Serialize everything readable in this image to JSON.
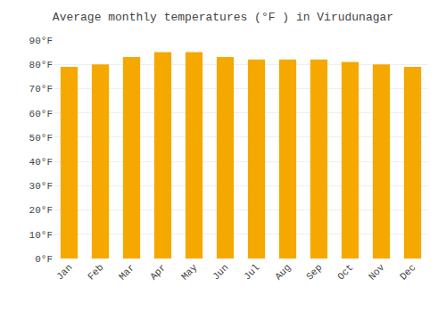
{
  "chart_data": {
    "type": "bar",
    "title": "Average monthly temperatures (°F ) in Virudunagar",
    "categories": [
      "Jan",
      "Feb",
      "Mar",
      "Apr",
      "May",
      "Jun",
      "Jul",
      "Aug",
      "Sep",
      "Oct",
      "Nov",
      "Dec"
    ],
    "values": [
      79,
      80,
      83,
      85,
      85,
      83,
      82,
      82,
      82,
      81,
      80,
      79
    ],
    "color": "#F5A800",
    "ylim": [
      0,
      90
    ],
    "yticks": [
      {
        "value": 0,
        "label": "0°F"
      },
      {
        "value": 10,
        "label": "10°F"
      },
      {
        "value": 20,
        "label": "20°F"
      },
      {
        "value": 30,
        "label": "30°F"
      },
      {
        "value": 40,
        "label": "40°F"
      },
      {
        "value": 50,
        "label": "50°F"
      },
      {
        "value": 60,
        "label": "60°F"
      },
      {
        "value": 70,
        "label": "70°F"
      },
      {
        "value": 80,
        "label": "80°F"
      },
      {
        "value": 90,
        "label": "90°F"
      }
    ],
    "grid": true
  }
}
